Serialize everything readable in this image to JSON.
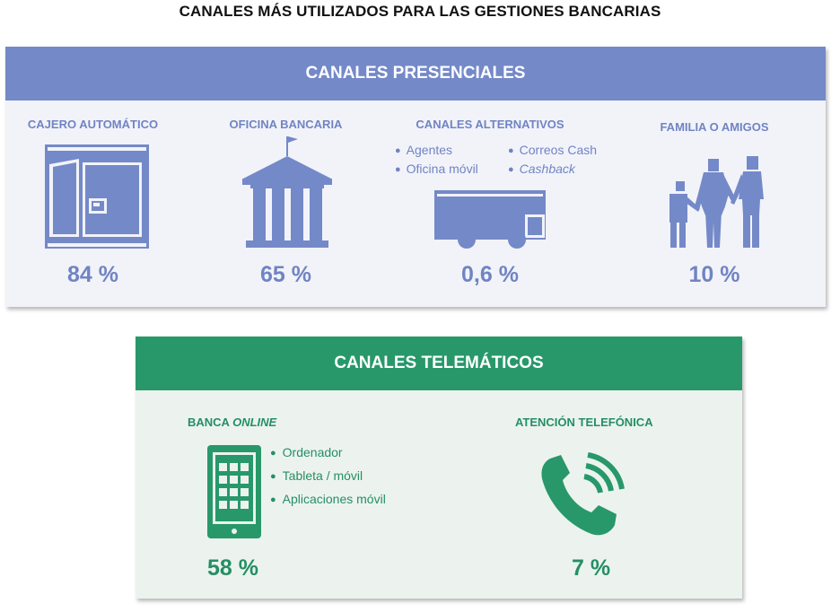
{
  "title": "CANALES MÁS UTILIZADOS PARA LAS GESTIONES BANCARIAS",
  "colors": {
    "presenciales": "#7489c8",
    "presenciales_bg": "#f2f3f9",
    "telematicos": "#28986a",
    "telematicos_bg": "#ecf3ef"
  },
  "presenciales": {
    "header": "CANALES PRESENCIALES",
    "items": [
      {
        "label": "CAJERO AUTOMÁTICO",
        "percent": "84 %",
        "icon": "atm-icon"
      },
      {
        "label": "OFICINA BANCARIA",
        "percent": "65 %",
        "icon": "bank-building-icon"
      },
      {
        "label": "CANALES  ALTERNATIVOS",
        "percent": "0,6 %",
        "icon": "delivery-van-icon",
        "bullets_left": [
          "Agentes",
          "Oficina móvil"
        ],
        "bullets_right": [
          "Correos Cash",
          "Cashback"
        ]
      },
      {
        "label": "FAMILIA O AMIGOS",
        "percent": "10 %",
        "icon": "family-icon"
      }
    ]
  },
  "telematicos": {
    "header": "CANALES TELEMÁTICOS",
    "items": [
      {
        "label_prefix": "BANCA ",
        "label_italic": "ONLINE",
        "percent": "58 %",
        "icon": "smartphone-icon",
        "bullets": [
          "Ordenador",
          "Tableta / móvil",
          "Aplicaciones móvil"
        ]
      },
      {
        "label": "ATENCIÓN TELEFÓNICA",
        "percent": "7 %",
        "icon": "phone-handset-icon"
      }
    ]
  }
}
